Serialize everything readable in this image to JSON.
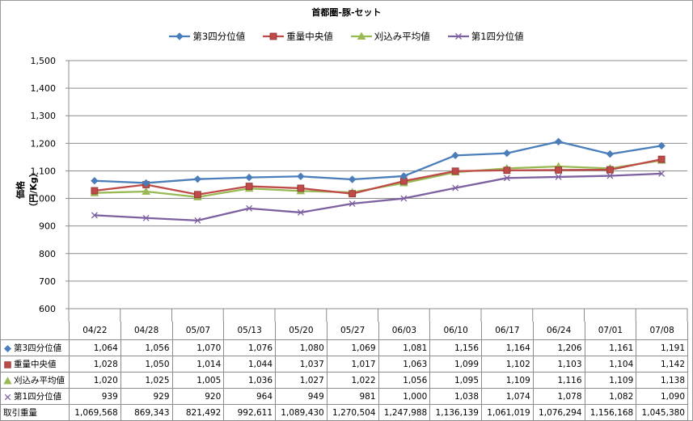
{
  "chart_data": {
    "type": "line",
    "title": "首都圏-豚-セット",
    "ylabel": "価格（円/Kg）",
    "xlabel": "",
    "ylim": [
      600,
      1500
    ],
    "yticks": [
      "600",
      "700",
      "800",
      "900",
      "1,000",
      "1,100",
      "1,200",
      "1,300",
      "1,400",
      "1,500"
    ],
    "grid": "horizontal",
    "legend": "top-center",
    "categories": [
      "04/22",
      "04/28",
      "05/07",
      "05/13",
      "05/20",
      "05/27",
      "06/03",
      "06/10",
      "06/17",
      "06/24",
      "07/01",
      "07/08"
    ],
    "series": [
      {
        "name": "第3四分位値",
        "color": "#4a7ebb",
        "marker": "diamond",
        "values": [
          1064,
          1056,
          1070,
          1076,
          1080,
          1069,
          1081,
          1156,
          1164,
          1206,
          1161,
          1191
        ],
        "labels": [
          "1,064",
          "1,056",
          "1,070",
          "1,076",
          "1,080",
          "1,069",
          "1,081",
          "1,156",
          "1,164",
          "1,206",
          "1,161",
          "1,191"
        ]
      },
      {
        "name": "重量中央値",
        "color": "#be4b48",
        "marker": "square",
        "values": [
          1028,
          1050,
          1014,
          1044,
          1037,
          1017,
          1063,
          1099,
          1102,
          1103,
          1104,
          1142
        ],
        "labels": [
          "1,028",
          "1,050",
          "1,014",
          "1,044",
          "1,037",
          "1,017",
          "1,063",
          "1,099",
          "1,102",
          "1,103",
          "1,104",
          "1,142"
        ]
      },
      {
        "name": "刈込み平均値",
        "color": "#98b954",
        "marker": "triangle",
        "values": [
          1020,
          1025,
          1005,
          1036,
          1027,
          1022,
          1056,
          1095,
          1109,
          1116,
          1109,
          1138
        ],
        "labels": [
          "1,020",
          "1,025",
          "1,005",
          "1,036",
          "1,027",
          "1,022",
          "1,056",
          "1,095",
          "1,109",
          "1,116",
          "1,109",
          "1,138"
        ]
      },
      {
        "name": "第1四分位値",
        "color": "#7d60a0",
        "marker": "x",
        "values": [
          939,
          929,
          920,
          964,
          949,
          981,
          1000,
          1038,
          1074,
          1078,
          1082,
          1090
        ],
        "labels": [
          "939",
          "929",
          "920",
          "964",
          "949",
          "981",
          "1,000",
          "1,038",
          "1,074",
          "1,078",
          "1,082",
          "1,090"
        ]
      }
    ],
    "table_extra_row": {
      "name": "取引重量",
      "values": [
        "1,069,568",
        "869,343",
        "821,492",
        "992,611",
        "1,089,430",
        "1,270,504",
        "1,247,988",
        "1,136,139",
        "1,061,019",
        "1,076,294",
        "1,156,168",
        "1,045,380"
      ]
    }
  }
}
